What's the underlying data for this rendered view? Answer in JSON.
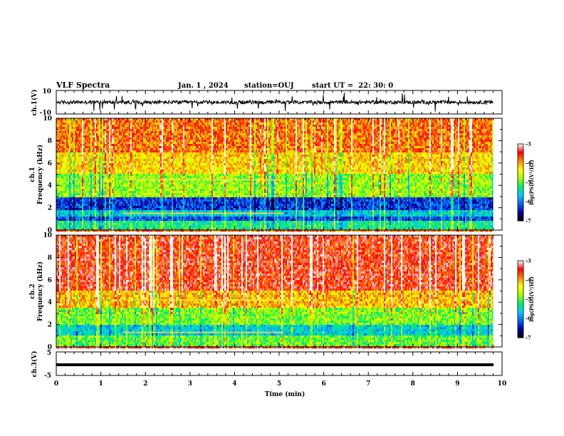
{
  "chart_data": [
    {
      "type": "line",
      "panel": "ch1-waveform",
      "ylabel": "ch.1(V)",
      "ylim": [
        -10,
        10
      ],
      "y_tick_labels": [
        "10",
        "-10"
      ],
      "xlim": [
        0,
        10
      ],
      "trace_color": "#000000",
      "approx_level": 0,
      "approx_amplitude": 3
    },
    {
      "type": "heatmap",
      "panel": "ch1-spectrogram",
      "ylabel_line1": "ch.1",
      "ylabel_line2": "Frequency (kHz)",
      "ylim": [
        0,
        10
      ],
      "y_tick_labels": [
        "0",
        "2",
        "4",
        "6",
        "8",
        "10"
      ],
      "xlim": [
        0,
        10
      ],
      "data_end_min": 9.8,
      "colorbar": {
        "label": "log(PSD)(V²/Hz)",
        "range": [
          -7,
          -3
        ],
        "tick_labels": [
          "-3",
          "-4",
          "-5",
          "-6",
          "-7"
        ],
        "colors": [
          "#000000",
          "#0000aa",
          "#0066ff",
          "#00ccff",
          "#00ee66",
          "#aaff00",
          "#ffff00",
          "#ff8800",
          "#ff0000",
          "#ffffff"
        ]
      },
      "bands": [
        {
          "from_khz": 0,
          "to_khz": 0.8,
          "level": -5.3
        },
        {
          "from_khz": 0.8,
          "to_khz": 1.2,
          "level": -6.2
        },
        {
          "from_khz": 1.2,
          "to_khz": 1.8,
          "level": -5.6
        },
        {
          "from_khz": 1.8,
          "to_khz": 3.0,
          "level": -6.3
        },
        {
          "from_khz": 3.0,
          "to_khz": 5.0,
          "level": -4.8
        },
        {
          "from_khz": 5.0,
          "to_khz": 7.0,
          "level": -4.2
        },
        {
          "from_khz": 7.0,
          "to_khz": 10.0,
          "level": -3.8
        }
      ],
      "lines_khz": [
        1.5,
        4.5
      ]
    },
    {
      "type": "heatmap",
      "panel": "ch2-spectrogram",
      "ylabel_line1": "ch.2",
      "ylabel_line2": "Frequency (kHz)",
      "ylim": [
        0,
        10
      ],
      "y_tick_labels": [
        "0",
        "2",
        "4",
        "6",
        "8",
        "10"
      ],
      "xlim": [
        0,
        10
      ],
      "data_end_min": 9.8,
      "colorbar": {
        "label": "log(PSD)(V²/Hz)",
        "range": [
          -7,
          -3
        ],
        "tick_labels": [
          "-3",
          "-4",
          "-5",
          "-6",
          "-7"
        ],
        "colors": [
          "#000000",
          "#0000aa",
          "#0066ff",
          "#00ccff",
          "#00ee66",
          "#aaff00",
          "#ffff00",
          "#ff8800",
          "#ff0000",
          "#ffffff"
        ]
      },
      "bands": [
        {
          "from_khz": 0,
          "to_khz": 1.0,
          "level": -5.0
        },
        {
          "from_khz": 1.0,
          "to_khz": 2.0,
          "level": -5.6
        },
        {
          "from_khz": 2.0,
          "to_khz": 3.5,
          "level": -4.9
        },
        {
          "from_khz": 3.5,
          "to_khz": 5.0,
          "level": -4.1
        },
        {
          "from_khz": 5.0,
          "to_khz": 10.0,
          "level": -3.5
        }
      ],
      "lines_khz": [
        1.3,
        4.2
      ]
    },
    {
      "type": "line",
      "panel": "ch3-waveform",
      "ylabel": "ch.3(V)",
      "ylim": [
        -5,
        5
      ],
      "y_tick_labels": [
        "5",
        "-5"
      ],
      "xlim": [
        0,
        10
      ],
      "trace_color": "#000000",
      "approx_level": 0
    }
  ],
  "header": {
    "title": "VLF Spectra",
    "date": "Jan. 1 , 2024",
    "station": "station=OUJ",
    "start": "start UT =  22: 30: 0"
  },
  "x_axis": {
    "label": "Time (min)",
    "tick_labels": [
      "0",
      "1",
      "2",
      "3",
      "4",
      "5",
      "6",
      "7",
      "8",
      "9",
      "10"
    ]
  }
}
